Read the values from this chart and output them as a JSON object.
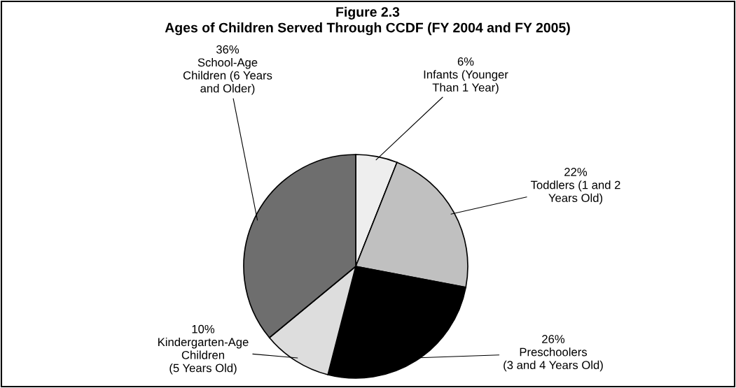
{
  "chart_data": {
    "type": "pie",
    "title": "Figure 2.3\nAges of Children Served Through CCDF (FY 2004 and FY 2005)",
    "categories": [
      "Infants (Younger\nThan 1 Year)",
      "Toddlers (1 and 2\nYears Old)",
      "Preschoolers\n(3 and 4 Years Old)",
      "Kindergarten-Age\nChildren\n(5 Years Old)",
      "School-Age\nChildren (6 Years\nand Older)"
    ],
    "values": [
      6,
      22,
      26,
      10,
      36
    ],
    "value_labels": [
      "6%",
      "22%",
      "26%",
      "10%",
      "36%"
    ],
    "colors": [
      "#eeeeee",
      "#c0c0c0",
      "#000000",
      "#dddddd",
      "#6e6e6e"
    ]
  }
}
